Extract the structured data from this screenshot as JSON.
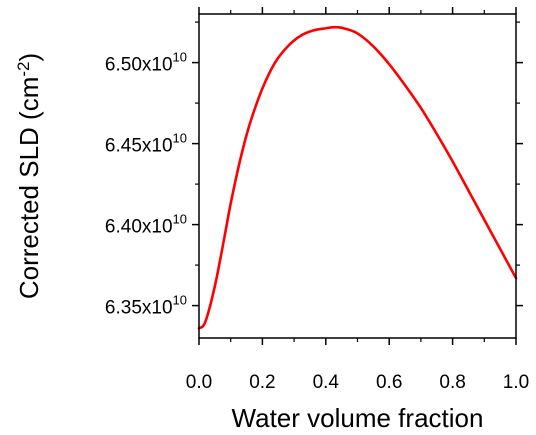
{
  "chart_data": {
    "type": "line",
    "title": "",
    "xlabel": "Water volume fraction",
    "ylabel": "Corrected SLD (cm",
    "ylabel_sup": "-2",
    "ylabel_close": ")",
    "xlim": [
      0.0,
      1.0
    ],
    "ylim": [
      63300000000.0,
      65300000000.0
    ],
    "x_ticks": [
      0.0,
      0.2,
      0.4,
      0.6,
      0.8,
      1.0
    ],
    "x_tick_labels": [
      "0.0",
      "0.2",
      "0.4",
      "0.6",
      "0.8",
      "1.0"
    ],
    "y_ticks": [
      63500000000.0,
      64000000000.0,
      64500000000.0,
      65000000000.0
    ],
    "y_tick_labels": [
      {
        "mantissa": "6.35x10",
        "exp": "10"
      },
      {
        "mantissa": "6.40x10",
        "exp": "10"
      },
      {
        "mantissa": "6.45x10",
        "exp": "10"
      },
      {
        "mantissa": "6.50x10",
        "exp": "10"
      }
    ],
    "grid": false,
    "line_color": "#ff0000",
    "series": [
      {
        "x": [
          0.0,
          0.02,
          0.05,
          0.08,
          0.1,
          0.13,
          0.16,
          0.2,
          0.24,
          0.28,
          0.32,
          0.36,
          0.4,
          0.42,
          0.44,
          0.46,
          0.5,
          0.55,
          0.6,
          0.65,
          0.7,
          0.75,
          0.8,
          0.85,
          0.9,
          0.95,
          1.0
        ],
        "y": [
          63360000000.0,
          63400000000.0,
          63620000000.0,
          63920000000.0,
          64130000000.0,
          64400000000.0,
          64620000000.0,
          64840000000.0,
          65000000000.0,
          65100000000.0,
          65165000000.0,
          65198000000.0,
          65212000000.0,
          65218000000.0,
          65218000000.0,
          65210000000.0,
          65180000000.0,
          65100000000.0,
          64990000000.0,
          64860000000.0,
          64720000000.0,
          64560000000.0,
          64390000000.0,
          64210000000.0,
          64030000000.0,
          63850000000.0,
          63670000000.0
        ]
      }
    ]
  }
}
